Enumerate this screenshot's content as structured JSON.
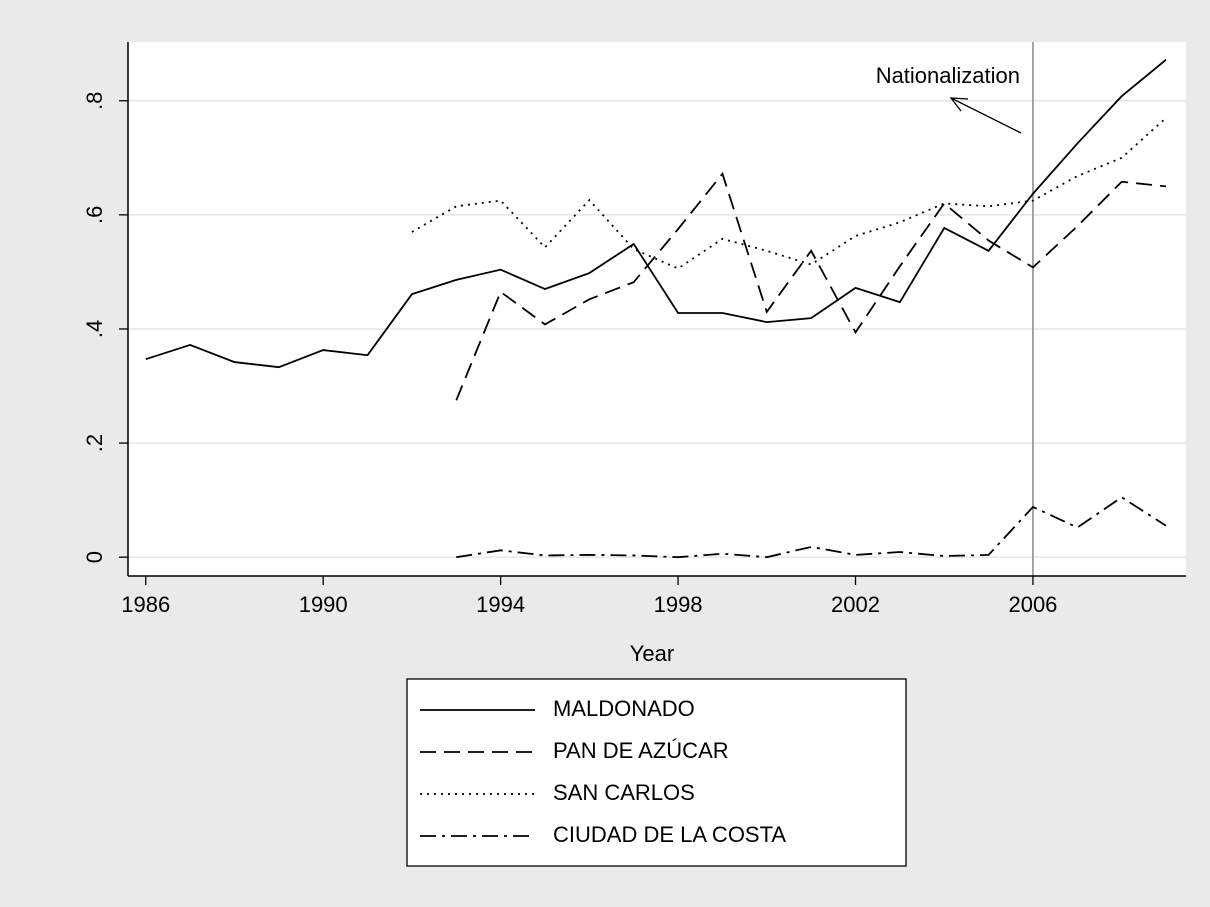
{
  "chart_data": {
    "type": "line",
    "x": [
      1986,
      1987,
      1988,
      1989,
      1990,
      1991,
      1992,
      1993,
      1994,
      1995,
      1996,
      1997,
      1998,
      1999,
      2000,
      2001,
      2002,
      2003,
      2004,
      2005,
      2006,
      2007,
      2008,
      2009
    ],
    "series": [
      {
        "name": "MALDONADO",
        "color": "#000000",
        "dash": "solid",
        "values": [
          0.347,
          0.372,
          0.342,
          0.333,
          0.363,
          0.354,
          0.461,
          0.486,
          0.504,
          0.47,
          0.498,
          0.549,
          0.428,
          0.428,
          0.412,
          0.419,
          0.472,
          0.447,
          0.577,
          0.537,
          0.637,
          0.725,
          0.808,
          0.872
        ]
      },
      {
        "name": "PAN DE AZÚCAR",
        "color": "#000000",
        "dash": "dashed",
        "values": [
          null,
          null,
          null,
          null,
          null,
          null,
          null,
          0.275,
          0.465,
          0.408,
          0.452,
          0.482,
          0.575,
          0.672,
          0.43,
          0.537,
          0.394,
          0.51,
          0.62,
          0.555,
          0.508,
          0.58,
          0.658,
          0.65
        ]
      },
      {
        "name": "SAN CARLOS",
        "color": "#000000",
        "dash": "dotted",
        "values": [
          null,
          null,
          null,
          null,
          null,
          null,
          0.57,
          0.615,
          0.625,
          0.543,
          0.626,
          0.54,
          0.506,
          0.558,
          0.537,
          0.513,
          0.563,
          0.587,
          0.62,
          0.615,
          0.625,
          0.668,
          0.7,
          0.77
        ]
      },
      {
        "name": "CIUDAD DE LA COSTA",
        "color": "#000000",
        "dash": "dashdot",
        "values": [
          null,
          null,
          null,
          null,
          null,
          null,
          null,
          0,
          0.012,
          0.003,
          0.004,
          0.003,
          0,
          0.006,
          0,
          0.018,
          0.004,
          0.009,
          0.002,
          0.004,
          0.088,
          0.052,
          0.105,
          0.055
        ]
      }
    ],
    "xlabel": "Year",
    "xlim": [
      1985.6,
      2009.45
    ],
    "xticks": [
      1986,
      1990,
      1994,
      1998,
      2002,
      2006
    ],
    "ylim": [
      -0.033,
      0.903
    ],
    "yticks": [
      0,
      {
        "value": 0.2,
        "label": ".2"
      },
      {
        "value": 0.4,
        "label": ".4"
      },
      {
        "value": 0.6,
        "label": ".6"
      },
      {
        "value": 0.8,
        "label": ".8"
      }
    ],
    "grid": true,
    "vline": 2006,
    "annotation": "Nationalization",
    "legend": "bottom"
  }
}
